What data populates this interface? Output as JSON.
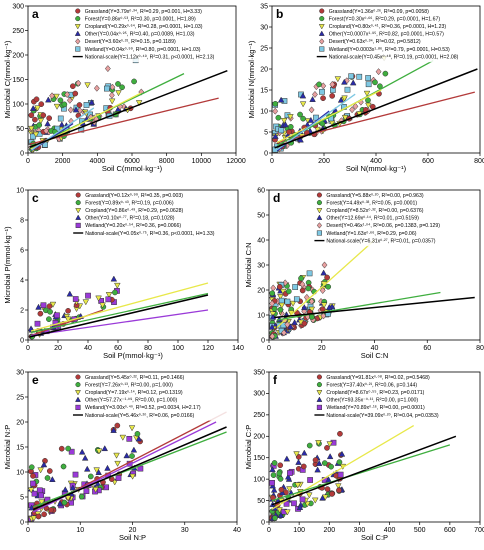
{
  "chart_data": [
    {
      "panel": "a",
      "type": "scatter",
      "xlabel": "Soil C(mmol·kg⁻¹)",
      "ylabel": "Microbial C(mmol·kg⁻¹)",
      "xlim": [
        0,
        12000
      ],
      "ylim": [
        0,
        300
      ],
      "xticks": [
        0,
        2000,
        4000,
        6000,
        8000,
        10000,
        12000
      ],
      "yticks": [
        0,
        50,
        100,
        150,
        200,
        250,
        300
      ],
      "legend_position": "top-right",
      "legend": [
        {
          "label": "Grassland(Y=3.79x⁰·³⁴, R²=0.29, p=0.001, H=3.33)",
          "marker": "circle",
          "color": "#b33a3a"
        },
        {
          "label": "Forest(Y=0.86x⁰·⁵³, R²=0.30, p=0.0001, H=1.89)",
          "marker": "circle",
          "color": "#3fae3f"
        },
        {
          "label": "Cropland(Y=0.29x⁰·⁶⁴, R²=0.28, p=0.0001, H=1.03)",
          "marker": "triangle-down",
          "color": "#e8e84a"
        },
        {
          "label": "Other(Y=0.04x⁰·⁹⁵, R²=0.40, p=0.0089, H=1.03)",
          "marker": "triangle-up",
          "color": "#2a2aa8"
        },
        {
          "label": "Desert(Y=3.60x⁰·³¹, R²=0.15, p=0.1189)",
          "marker": "diamond",
          "color": "#e8a0a0"
        },
        {
          "label": "Wetland(Y=0.04x⁰·⁹⁹, R²=0.80, p=0.0001, H=1.03)",
          "marker": "square",
          "color": "#7ec8e3"
        },
        {
          "label": "National-scale(Y=1.12x⁰·⁴⁹, R²=0.31, p<0.0001, H=2.13)",
          "marker": "line",
          "color": "#000000"
        }
      ],
      "lines": [
        {
          "name": "Grassland",
          "color": "#b33a3a",
          "x": [
            100,
            11000
          ],
          "y": [
            18,
            112
          ]
        },
        {
          "name": "Forest",
          "color": "#3fae3f",
          "x": [
            100,
            9000
          ],
          "y": [
            10,
            162
          ]
        },
        {
          "name": "Cropland",
          "color": "#e8e84a",
          "x": [
            200,
            6500
          ],
          "y": [
            8,
            122
          ]
        },
        {
          "name": "Other",
          "color": "#2a2aa8",
          "x": [
            200,
            2600
          ],
          "y": [
            5,
            60
          ]
        },
        {
          "name": "Wetland",
          "color": "#7ec8e3",
          "x": [
            200,
            3800
          ],
          "y": [
            6,
            92
          ]
        },
        {
          "name": "National-scale",
          "color": "#000000",
          "x": [
            100,
            11500
          ],
          "y": [
            12,
            168
          ]
        }
      ]
    },
    {
      "panel": "b",
      "type": "scatter",
      "xlabel": "Soil N(mmol·kg⁻¹)",
      "ylabel": "Microbial N(mmol·kg⁻¹)",
      "xlim": [
        0,
        800
      ],
      "ylim": [
        0,
        35
      ],
      "xticks": [
        0,
        200,
        400,
        600,
        800
      ],
      "yticks": [
        0,
        5,
        10,
        15,
        20,
        25,
        30,
        35
      ],
      "legend_position": "top-right",
      "legend": [
        {
          "label": "Grassland(Y=1.36x⁰·²⁶, R²=0.09, p=0.0058)",
          "marker": "circle",
          "color": "#b33a3a"
        },
        {
          "label": "Forest(Y=0.30x⁰·⁶⁶, R²=0.29, p=0.0001, H=1.67)",
          "marker": "circle",
          "color": "#3fae3f"
        },
        {
          "label": "Cropland(Y=0.80x⁰·⁴¹, R²=0.36, p=0.0001, H=1.23)",
          "marker": "triangle-down",
          "color": "#e8e84a"
        },
        {
          "label": "Other(Y=0.0007x¹·⁹⁵, R²=0.82, p=0.0001, H=0.57)",
          "marker": "triangle-up",
          "color": "#2a2aa8"
        },
        {
          "label": "Desert(Y=0.63x⁰·³⁴, R²=0.02, p=0.5812)",
          "marker": "diamond",
          "color": "#e8a0a0"
        },
        {
          "label": "Wetland(Y=0.0003x¹·⁸⁶, R²=0.79, p=0.0001, H=0.53)",
          "marker": "square",
          "color": "#7ec8e3"
        },
        {
          "label": "National-scale(Y=0.45x⁰·⁴⁸, R²=0.19, p=0.0001, H=2.08)",
          "marker": "line",
          "color": "#000000"
        }
      ],
      "lines": [
        {
          "name": "Grassland",
          "color": "#b33a3a",
          "x": [
            20,
            780
          ],
          "y": [
            2.5,
            14.5
          ]
        },
        {
          "name": "Forest",
          "color": "#3fae3f",
          "x": [
            20,
            620
          ],
          "y": [
            1.8,
            22
          ]
        },
        {
          "name": "Cropland",
          "color": "#e8e84a",
          "x": [
            20,
            420
          ],
          "y": [
            2.5,
            15
          ]
        },
        {
          "name": "Other",
          "color": "#2a2aa8",
          "x": [
            20,
            220
          ],
          "y": [
            0.5,
            10
          ]
        },
        {
          "name": "Wetland",
          "color": "#7ec8e3",
          "x": [
            20,
            320
          ],
          "y": [
            0.8,
            14
          ]
        },
        {
          "name": "National-scale",
          "color": "#000000",
          "x": [
            10,
            790
          ],
          "y": [
            1.2,
            20
          ]
        }
      ]
    },
    {
      "panel": "c",
      "type": "scatter",
      "xlabel": "Soil P(mmol·kg⁻¹)",
      "ylabel": "Microbial P(mmol·kg⁻¹)",
      "xlim": [
        0,
        140
      ],
      "ylim": [
        0,
        10
      ],
      "xticks": [
        0,
        20,
        40,
        60,
        80,
        100,
        120,
        140
      ],
      "yticks": [
        0,
        2,
        4,
        6,
        8,
        10
      ],
      "legend_position": "top-right",
      "legend": [
        {
          "label": "Grassland(Y=0.12x⁰·⁹⁹, R²=0.35, p=0.003)",
          "marker": "circle",
          "color": "#b33a3a"
        },
        {
          "label": "Forest(Y=0.89x⁰·⁴³, R²=0.19, p=0.006)",
          "marker": "circle",
          "color": "#3fae3f"
        },
        {
          "label": "Cropland(Y=0.86x⁰·⁴⁹, R²=0.29, p=0.0628)",
          "marker": "triangle-down",
          "color": "#e8e84a"
        },
        {
          "label": "Other(Y=0.10x⁰·⁷⁷, R²=0.18, p=0.1028)",
          "marker": "triangle-up",
          "color": "#2a2aa8"
        },
        {
          "label": "Wetland(Y=0.20x⁰·⁵⁴, R²=0.36, p=0.0066)",
          "marker": "square",
          "color": "#9a3ad8"
        },
        {
          "label": "National-scale(Y=0.05x⁰·⁷⁵, R²=0.36, p<0.0001, H=1.33)",
          "marker": "line",
          "color": "#000000"
        }
      ],
      "lines": [
        {
          "name": "Grassland",
          "color": "#b33a3a",
          "x": [
            2,
            50
          ],
          "y": [
            0.3,
            2.0
          ]
        },
        {
          "name": "Forest",
          "color": "#3fae3f",
          "x": [
            2,
            120
          ],
          "y": [
            0.5,
            3.1
          ]
        },
        {
          "name": "Cropland",
          "color": "#e8e84a",
          "x": [
            2,
            120
          ],
          "y": [
            0.6,
            3.8
          ]
        },
        {
          "name": "Wetland",
          "color": "#9a3ad8",
          "x": [
            2,
            120
          ],
          "y": [
            0.3,
            2.0
          ]
        },
        {
          "name": "National-scale",
          "color": "#000000",
          "x": [
            1,
            120
          ],
          "y": [
            0.2,
            3.0
          ]
        }
      ]
    },
    {
      "panel": "d",
      "type": "scatter",
      "xlabel": "Soil C:N",
      "ylabel": "Microbial C:N",
      "xlim": [
        0,
        80
      ],
      "ylim": [
        0,
        60
      ],
      "xticks": [
        0,
        20,
        40,
        60,
        80
      ],
      "yticks": [
        0,
        10,
        20,
        30,
        40,
        50,
        60
      ],
      "legend_position": "top-right",
      "legend": [
        {
          "label": "Grassland(Y=5.88x⁰·²⁰, R²=0.00, p=0.963)",
          "marker": "circle",
          "color": "#b33a3a"
        },
        {
          "label": "Forest(Y=4.49x⁰·³³, R²=0.05, p=0.0001)",
          "marker": "circle",
          "color": "#3fae3f"
        },
        {
          "label": "Cropland(Y=8.52x⁰·³², R²=0.00, p=0.6376)",
          "marker": "triangle-down",
          "color": "#e8e84a"
        },
        {
          "label": "Other(Y=12.69x⁰·¹⁴, R²=0.01, p=0.5159)",
          "marker": "triangle-up",
          "color": "#2a2aa8"
        },
        {
          "label": "Desert(Y=0.46x¹·⁰⁴, R²=0.06, p=0.1383, p=0.129)",
          "marker": "diamond",
          "color": "#e8a0a0"
        },
        {
          "label": "Wetland(Y=1.63x⁰·⁶⁶, R²=0.29, p=0.06)",
          "marker": "square",
          "color": "#7ec8e3"
        },
        {
          "label": "National-scale(Y=6.31x⁰·²⁷, R²=0.01, p=0.0357)",
          "marker": "line",
          "color": "#000000"
        }
      ],
      "lines": [
        {
          "name": "Cropland",
          "color": "#e8e84a",
          "x": [
            3,
            40
          ],
          "y": [
            5,
            40
          ]
        },
        {
          "name": "Forest",
          "color": "#3fae3f",
          "x": [
            3,
            65
          ],
          "y": [
            8,
            19
          ]
        },
        {
          "name": "National-scale",
          "color": "#000000",
          "x": [
            2,
            78
          ],
          "y": [
            9,
            17
          ]
        }
      ]
    },
    {
      "panel": "e",
      "type": "scatter",
      "xlabel": "Soil N:P",
      "ylabel": "Microbial N:P",
      "xlim": [
        0,
        40
      ],
      "ylim": [
        0,
        30
      ],
      "xticks": [
        0,
        10,
        20,
        30,
        40
      ],
      "yticks": [
        0,
        5,
        10,
        15,
        20,
        25,
        30
      ],
      "legend_position": "top-right",
      "legend": [
        {
          "label": "Grassland(Y=5.45x⁰·²², R²=0.11, p=0.1466)",
          "marker": "circle",
          "color": "#b33a3a"
        },
        {
          "label": "Forest(Y=7.26x⁰·¹³, R²=0.00, p=1.000)",
          "marker": "circle",
          "color": "#3fae3f"
        },
        {
          "label": "Cropland(Y=7.19x⁰·¹⁴, R²=0.12, p=0.1319)",
          "marker": "triangle-down",
          "color": "#e8e84a"
        },
        {
          "label": "Other(Y=57.27x⁻¹·⁰⁹, R²=0.00, p=1.000)",
          "marker": "triangle-up",
          "color": "#2a2aa8"
        },
        {
          "label": "Wetland(Y=3.00x⁰·⁴⁰, R²=0.52, p=0.0034, H=2.17)",
          "marker": "square",
          "color": "#9a3ad8"
        },
        {
          "label": "National-scale(Y=5.46x⁰·²⁰, R²=0.06, p=0.0166)",
          "marker": "line",
          "color": "#000000"
        }
      ],
      "lines": [
        {
          "name": "Grassland",
          "color": "#b33a3a",
          "x": [
            1,
            38
          ],
          "y": [
            2,
            22
          ]
        },
        {
          "name": "Forest",
          "color": "#3fae3f",
          "x": [
            1,
            38
          ],
          "y": [
            3,
            18
          ]
        },
        {
          "name": "Wetland",
          "color": "#9a3ad8",
          "x": [
            1,
            36
          ],
          "y": [
            2,
            20
          ]
        },
        {
          "name": "National-scale",
          "color": "#000000",
          "x": [
            1,
            38
          ],
          "y": [
            2.5,
            19
          ]
        }
      ]
    },
    {
      "panel": "f",
      "type": "scatter",
      "xlabel": "Soil C:P",
      "ylabel": "Microbial C:P",
      "xlim": [
        0,
        700
      ],
      "ylim": [
        0,
        350
      ],
      "xticks": [
        0,
        100,
        200,
        300,
        400,
        500,
        600,
        700
      ],
      "yticks": [
        0,
        50,
        100,
        150,
        200,
        250,
        300,
        350
      ],
      "legend_position": "top-right",
      "legend": [
        {
          "label": "Grassland(Y=91.81x⁰·⁰⁸, R²=0.02, p=0.5468)",
          "marker": "circle",
          "color": "#b33a3a"
        },
        {
          "label": "Forest(Y=37.40x⁰·²¹, R²=0.06, p=0.144)",
          "marker": "circle",
          "color": "#3fae3f"
        },
        {
          "label": "Cropland(Y=8.67x⁰·⁵⁵, R²=0.23, p=0.0171)",
          "marker": "triangle-down",
          "color": "#e8e84a"
        },
        {
          "label": "Other(Y=93.35x⁻⁰·¹¹, R²=0.00, p=1.000)",
          "marker": "triangle-up",
          "color": "#2a2aa8"
        },
        {
          "label": "Wetland(Y=70.89x⁰·¹⁶, R²=0.00, p=0.0001)",
          "marker": "square",
          "color": "#9a3ad8"
        },
        {
          "label": "National-scale(Y=39.09x⁰·²⁰, R²=0.04, p=0.0353)",
          "marker": "line",
          "color": "#000000"
        }
      ],
      "lines": [
        {
          "name": "Cropland",
          "color": "#e8e84a",
          "x": [
            10,
            480
          ],
          "y": [
            30,
            225
          ]
        },
        {
          "name": "Forest",
          "color": "#3fae3f",
          "x": [
            10,
            600
          ],
          "y": [
            50,
            180
          ]
        },
        {
          "name": "National-scale",
          "color": "#000000",
          "x": [
            10,
            620
          ],
          "y": [
            40,
            200
          ]
        }
      ]
    }
  ]
}
